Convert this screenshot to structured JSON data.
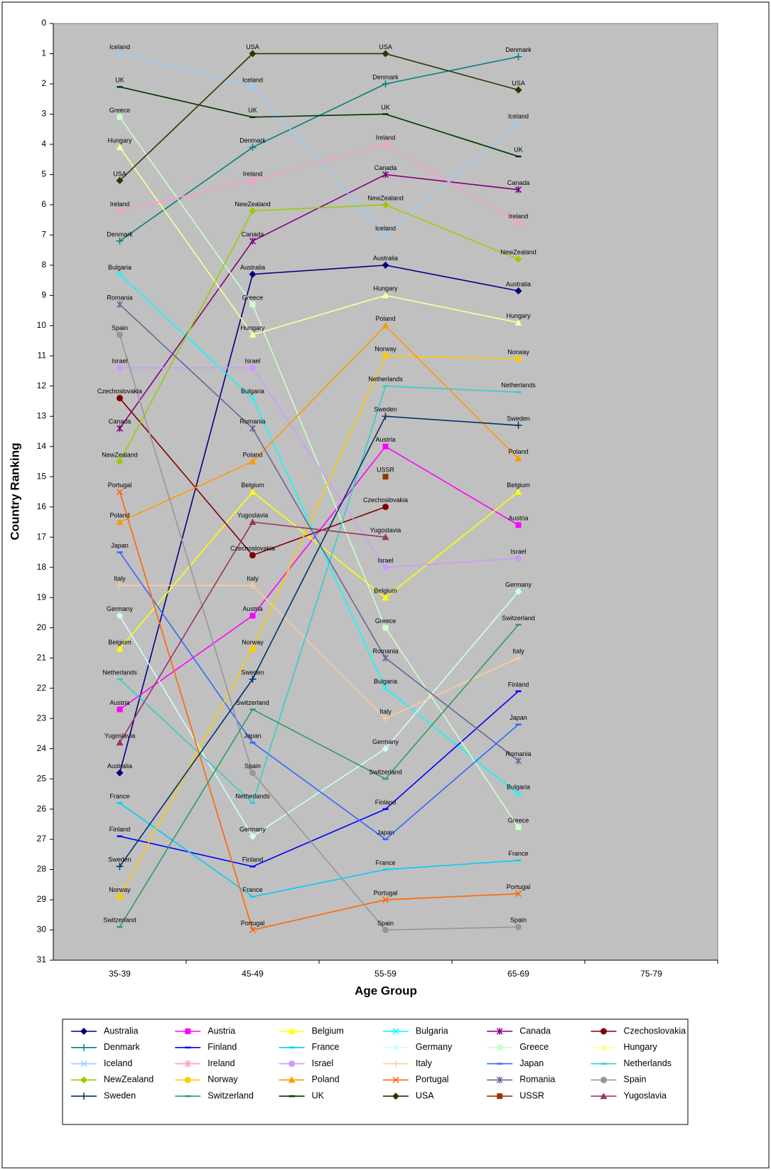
{
  "chart_data": {
    "type": "line",
    "x_label": "Age Group",
    "y_label": "Country Ranking",
    "categories": [
      "35-39",
      "45-49",
      "55-59",
      "65-69",
      "75-79"
    ],
    "ylim": [
      0,
      31
    ],
    "y_inverted": true,
    "yticks": [
      0,
      1,
      2,
      3,
      4,
      5,
      6,
      7,
      8,
      9,
      10,
      11,
      12,
      13,
      14,
      15,
      16,
      17,
      18,
      19,
      20,
      21,
      22,
      23,
      24,
      25,
      26,
      27,
      28,
      29,
      30,
      31
    ],
    "plot_background": "#c0c0c0",
    "data_labels": true,
    "legend": "bottom",
    "series": [
      {
        "name": "Australia",
        "color": "#000080",
        "marker": "diamond",
        "values": [
          24.8,
          8.3,
          8.0,
          8.85,
          null
        ]
      },
      {
        "name": "Austria",
        "color": "#ff00ff",
        "marker": "square",
        "values": [
          22.7,
          19.6,
          14.0,
          16.6,
          null
        ]
      },
      {
        "name": "Belgium",
        "color": "#ffff00",
        "marker": "triangle",
        "values": [
          20.7,
          15.5,
          19.0,
          15.5,
          null
        ]
      },
      {
        "name": "Bulgaria",
        "color": "#00ffff",
        "marker": "x",
        "values": [
          8.3,
          12.4,
          22.0,
          25.5,
          null
        ]
      },
      {
        "name": "Canada",
        "color": "#800080",
        "marker": "star",
        "values": [
          13.4,
          7.2,
          5.0,
          5.5,
          null
        ]
      },
      {
        "name": "Czechoslovakia",
        "color": "#800000",
        "marker": "circle",
        "values": [
          12.4,
          17.6,
          16.0,
          null,
          null
        ]
      },
      {
        "name": "Denmark",
        "color": "#008080",
        "marker": "plus",
        "values": [
          7.2,
          4.1,
          2.0,
          1.1,
          null
        ]
      },
      {
        "name": "Finland",
        "color": "#0000ff",
        "marker": "dash",
        "values": [
          26.9,
          27.9,
          26.0,
          22.1,
          null
        ]
      },
      {
        "name": "France",
        "color": "#00ccff",
        "marker": "dash",
        "values": [
          25.8,
          28.9,
          28.0,
          27.7,
          null
        ]
      },
      {
        "name": "Germany",
        "color": "#ccffff",
        "marker": "diamond",
        "values": [
          19.6,
          26.9,
          24.0,
          18.8,
          null
        ]
      },
      {
        "name": "Greece",
        "color": "#ccffcc",
        "marker": "square",
        "values": [
          3.1,
          9.3,
          20.0,
          26.6,
          null
        ]
      },
      {
        "name": "Hungary",
        "color": "#ffff99",
        "marker": "triangle",
        "values": [
          4.1,
          10.3,
          9.0,
          9.9,
          null
        ]
      },
      {
        "name": "Iceland",
        "color": "#99ccff",
        "marker": "x",
        "values": [
          1.0,
          2.1,
          7.0,
          3.3,
          null
        ]
      },
      {
        "name": "Ireland",
        "color": "#ff99cc",
        "marker": "star",
        "values": [
          6.2,
          5.2,
          4.0,
          6.6,
          null
        ]
      },
      {
        "name": "Israel",
        "color": "#cc99ff",
        "marker": "circle",
        "values": [
          11.4,
          11.4,
          18.0,
          17.7,
          null
        ]
      },
      {
        "name": "Italy",
        "color": "#ffcc99",
        "marker": "plus",
        "values": [
          18.6,
          18.6,
          23.0,
          21.0,
          null
        ]
      },
      {
        "name": "Japan",
        "color": "#3366ff",
        "marker": "dash",
        "values": [
          17.5,
          23.8,
          27.0,
          23.2,
          null
        ]
      },
      {
        "name": "Netherlands",
        "color": "#33cccc",
        "marker": "dash",
        "values": [
          21.7,
          25.8,
          12.0,
          12.2,
          null
        ]
      },
      {
        "name": "NewZealand",
        "color": "#99cc00",
        "marker": "diamond",
        "values": [
          14.5,
          6.2,
          6.0,
          7.8,
          null
        ]
      },
      {
        "name": "Norway",
        "color": "#ffcc00",
        "marker": "circle",
        "values": [
          28.9,
          20.7,
          11.0,
          11.1,
          null
        ]
      },
      {
        "name": "Poland",
        "color": "#ff9900",
        "marker": "triangle",
        "values": [
          16.5,
          14.5,
          10.0,
          14.4,
          null
        ]
      },
      {
        "name": "Portugal",
        "color": "#ff6600",
        "marker": "x",
        "values": [
          15.5,
          30.0,
          29.0,
          28.8,
          null
        ]
      },
      {
        "name": "Romania",
        "color": "#666699",
        "marker": "star",
        "values": [
          9.3,
          13.4,
          21.0,
          24.4,
          null
        ]
      },
      {
        "name": "Spain",
        "color": "#969696",
        "marker": "circle",
        "values": [
          10.3,
          24.8,
          30.0,
          29.9,
          null
        ]
      },
      {
        "name": "Sweden",
        "color": "#003366",
        "marker": "plus",
        "values": [
          27.9,
          21.7,
          13.0,
          13.3,
          null
        ]
      },
      {
        "name": "Switzerland",
        "color": "#339966",
        "marker": "dash",
        "values": [
          29.9,
          22.7,
          25.0,
          19.9,
          null
        ]
      },
      {
        "name": "UK",
        "color": "#003300",
        "marker": "dash",
        "values": [
          2.1,
          3.1,
          3.0,
          4.4,
          null
        ]
      },
      {
        "name": "USA",
        "color": "#333300",
        "marker": "diamond",
        "values": [
          5.2,
          1.0,
          1.0,
          2.2,
          null
        ]
      },
      {
        "name": "USSR",
        "color": "#993300",
        "marker": "square",
        "values": [
          null,
          null,
          15.0,
          null,
          null
        ]
      },
      {
        "name": "Yugoslavia",
        "color": "#993366",
        "marker": "triangle",
        "values": [
          23.8,
          16.5,
          17.0,
          null,
          null
        ]
      }
    ]
  }
}
